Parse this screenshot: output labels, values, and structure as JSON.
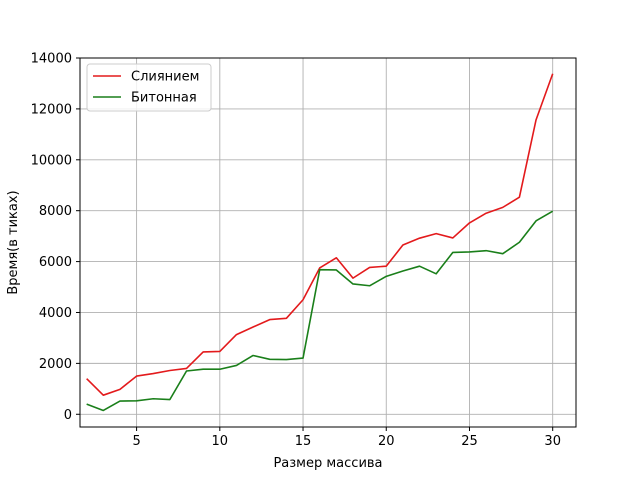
{
  "chart_data": {
    "type": "line",
    "title": "",
    "xlabel": "Размер массива",
    "ylabel": "Время(в тиках)",
    "xlim": [
      1.6,
      31.4
    ],
    "ylim": [
      -500,
      14000
    ],
    "xticks": [
      5,
      10,
      15,
      20,
      25,
      30
    ],
    "yticks": [
      0,
      2000,
      4000,
      6000,
      8000,
      10000,
      12000,
      14000
    ],
    "grid": true,
    "legend_position": "top-left",
    "x": [
      2,
      3,
      4,
      5,
      6,
      7,
      8,
      9,
      10,
      11,
      12,
      13,
      14,
      15,
      16,
      17,
      18,
      19,
      20,
      21,
      22,
      23,
      24,
      25,
      26,
      27,
      28,
      29,
      30
    ],
    "series": [
      {
        "name": "Слиянием",
        "color": "#e31a1c",
        "values": [
          1400,
          750,
          980,
          1500,
          1600,
          1720,
          1800,
          2450,
          2470,
          3130,
          3430,
          3720,
          3770,
          4500,
          5750,
          6150,
          5350,
          5770,
          5820,
          6650,
          6920,
          7100,
          6930,
          7520,
          7900,
          8130,
          8530,
          11570,
          13380
        ]
      },
      {
        "name": "Битонная",
        "color": "#1a7f1a",
        "values": [
          400,
          150,
          520,
          530,
          610,
          580,
          1700,
          1770,
          1770,
          1920,
          2310,
          2160,
          2150,
          2210,
          5680,
          5670,
          5120,
          5050,
          5420,
          5630,
          5820,
          5520,
          6360,
          6380,
          6430,
          6310,
          6760,
          7600,
          7980
        ]
      }
    ]
  }
}
